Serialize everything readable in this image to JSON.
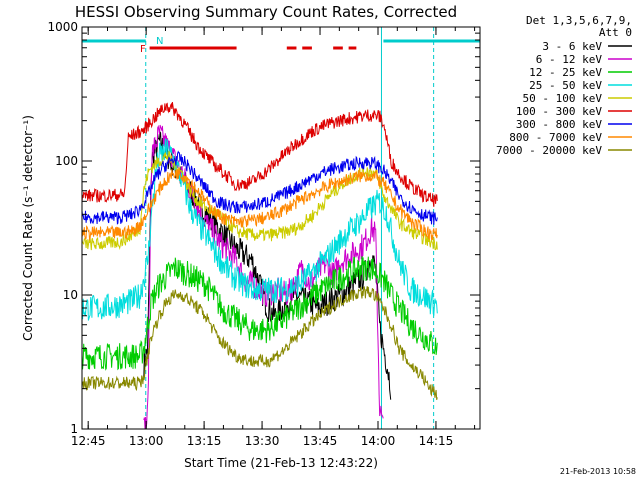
{
  "chart_data": {
    "type": "line",
    "title": "HESSI Observing Summary Count Rates, Corrected",
    "xlabel": "Start Time (21-Feb-13 12:43:22)",
    "ylabel": "Corrected Count Rate (s⁻¹ detector⁻¹)",
    "ylog": true,
    "ylim": [
      1,
      1000
    ],
    "xlim_minutes": [
      0,
      103
    ],
    "xticks": [
      {
        "label": "12:45",
        "t": 1.6
      },
      {
        "label": "13:00",
        "t": 16.6
      },
      {
        "label": "13:15",
        "t": 31.6
      },
      {
        "label": "13:30",
        "t": 46.6
      },
      {
        "label": "13:45",
        "t": 61.6
      },
      {
        "label": "14:00",
        "t": 76.6
      },
      {
        "label": "14:15",
        "t": 91.6
      }
    ],
    "yticks": [
      {
        "label": "1",
        "v": 1
      },
      {
        "label": "10",
        "v": 10
      },
      {
        "label": "100",
        "v": 100
      },
      {
        "label": "1000",
        "v": 1000
      }
    ],
    "legend_header": [
      "Det 1,3,5,6,7,9,",
      "Att 0"
    ],
    "flag_labels": {
      "f": "F",
      "n": "N"
    },
    "night_bars": [
      [
        0,
        16.5
      ],
      [
        78,
        103
      ]
    ],
    "flare_bars": [
      [
        17.5,
        40
      ],
      [
        53,
        55.5
      ],
      [
        57,
        59.5
      ],
      [
        65,
        67.5
      ],
      [
        69,
        71
      ]
    ],
    "dashed_lines": [
      16.5,
      91
    ],
    "solid_lines": [
      77.5
    ],
    "series": [
      {
        "name": "3 - 6 keV",
        "color": "#000000",
        "x": [
          16,
          17,
          18,
          20,
          22,
          25,
          28,
          32,
          36,
          40,
          44,
          46,
          48,
          50,
          52,
          55,
          58,
          61,
          64,
          67,
          70,
          73,
          75,
          76,
          77,
          78,
          79,
          80
        ],
        "y": [
          3,
          4,
          100,
          140,
          110,
          80,
          60,
          40,
          30,
          22,
          18,
          12,
          8,
          7,
          8,
          10,
          9,
          8,
          9,
          10,
          12,
          14,
          20,
          15,
          6,
          4,
          3,
          2
        ]
      },
      {
        "name": "6 - 12 keV",
        "color": "#cc00cc",
        "x": [
          16,
          17,
          18,
          20,
          22,
          25,
          28,
          32,
          36,
          40,
          42,
          44,
          46,
          48,
          50,
          53,
          55,
          57,
          59,
          61,
          63,
          65,
          67,
          70,
          73,
          75,
          76,
          77,
          78
        ],
        "y": [
          1,
          1.2,
          110,
          160,
          130,
          90,
          60,
          35,
          24,
          18,
          13,
          12,
          11,
          10,
          11,
          10,
          12,
          16,
          12,
          15,
          17,
          14,
          18,
          20,
          24,
          32,
          28,
          1.5,
          1
        ]
      },
      {
        "name": "12 - 25 keV",
        "color": "#00cc00",
        "x": [
          0,
          5,
          10,
          13,
          15,
          16,
          17,
          18,
          20,
          22,
          24,
          26,
          28,
          30,
          32,
          34,
          36,
          40,
          44,
          48,
          52,
          56,
          60,
          64,
          68,
          72,
          75,
          77,
          78,
          80,
          82,
          85,
          88,
          90,
          92
        ],
        "y": [
          3.5,
          3.5,
          3.5,
          3.5,
          3.5,
          4,
          6,
          9,
          12,
          14,
          16,
          15,
          14,
          13,
          12,
          10,
          8,
          6.5,
          5.5,
          5.5,
          6.5,
          8,
          10,
          12,
          14,
          16,
          16,
          14,
          13,
          10,
          8,
          6,
          5,
          4.5,
          4
        ]
      },
      {
        "name": "25 - 50 keV",
        "color": "#00dddd",
        "x": [
          0,
          5,
          10,
          13,
          15,
          17,
          18,
          19,
          20,
          22,
          24,
          26,
          28,
          30,
          32,
          34,
          36,
          38,
          40,
          44,
          48,
          52,
          56,
          60,
          64,
          68,
          72,
          74,
          76,
          77,
          78,
          79,
          80,
          82,
          85,
          88,
          90,
          92
        ],
        "y": [
          8,
          8,
          8.5,
          9,
          10,
          18,
          40,
          80,
          110,
          120,
          100,
          70,
          45,
          34,
          28,
          22,
          18,
          15,
          13,
          11,
          11,
          11,
          12,
          15,
          20,
          28,
          36,
          42,
          48,
          50,
          45,
          40,
          30,
          18,
          11,
          10,
          9,
          8.5
        ]
      },
      {
        "name": "50 - 100 keV",
        "color": "#cccc00",
        "x": [
          0,
          5,
          10,
          13,
          15,
          16,
          17,
          18,
          20,
          22,
          24,
          26,
          28,
          30,
          32,
          34,
          36,
          38,
          40,
          44,
          48,
          52,
          56,
          60,
          64,
          68,
          72,
          74,
          76,
          77,
          78,
          80,
          82,
          85,
          88,
          90,
          92
        ],
        "y": [
          24,
          24,
          25,
          28,
          32,
          60,
          80,
          90,
          100,
          110,
          95,
          80,
          60,
          50,
          45,
          42,
          38,
          34,
          30,
          28,
          28,
          29,
          32,
          40,
          55,
          70,
          82,
          85,
          80,
          70,
          55,
          45,
          35,
          30,
          27,
          25,
          24
        ]
      },
      {
        "name": "100 - 300 keV",
        "color": "#dd0000",
        "x": [
          0,
          5,
          10,
          11,
          12,
          14,
          16,
          18,
          20,
          22,
          24,
          26,
          28,
          30,
          32,
          34,
          36,
          38,
          40,
          44,
          48,
          52,
          56,
          60,
          64,
          68,
          72,
          74,
          76,
          77,
          78,
          79,
          80,
          82,
          85,
          88,
          90,
          92
        ],
        "y": [
          55,
          55,
          56,
          56,
          150,
          160,
          170,
          200,
          230,
          260,
          240,
          200,
          160,
          130,
          110,
          95,
          85,
          75,
          66,
          70,
          85,
          110,
          140,
          170,
          190,
          205,
          215,
          220,
          220,
          215,
          190,
          140,
          100,
          80,
          65,
          56,
          52,
          50
        ]
      },
      {
        "name": "300 - 800 keV",
        "color": "#0000ee",
        "x": [
          0,
          5,
          10,
          13,
          15,
          17,
          19,
          21,
          23,
          25,
          27,
          29,
          31,
          33,
          35,
          37,
          40,
          44,
          48,
          52,
          56,
          60,
          64,
          68,
          72,
          74,
          76,
          77,
          78,
          80,
          82,
          85,
          88,
          90,
          92
        ],
        "y": [
          38,
          38,
          38,
          40,
          44,
          55,
          75,
          90,
          100,
          105,
          95,
          80,
          68,
          58,
          50,
          47,
          45,
          46,
          50,
          56,
          65,
          76,
          86,
          92,
          97,
          98,
          95,
          90,
          85,
          70,
          55,
          45,
          40,
          38,
          37
        ]
      },
      {
        "name": "800 - 7000 keV",
        "color": "#ff8800",
        "x": [
          0,
          5,
          10,
          13,
          15,
          17,
          19,
          21,
          23,
          25,
          27,
          29,
          31,
          33,
          35,
          37,
          40,
          44,
          48,
          52,
          56,
          60,
          64,
          68,
          72,
          74,
          76,
          77,
          78,
          80,
          82,
          85,
          88,
          90,
          92
        ],
        "y": [
          29,
          29,
          29,
          30,
          33,
          42,
          55,
          68,
          78,
          82,
          76,
          65,
          55,
          46,
          40,
          37,
          35,
          36,
          38,
          43,
          50,
          58,
          66,
          72,
          77,
          78,
          76,
          72,
          68,
          55,
          44,
          36,
          31,
          29,
          28
        ]
      },
      {
        "name": "7000 - 20000 keV",
        "color": "#888800",
        "x": [
          0,
          5,
          10,
          13,
          15,
          16,
          17,
          18,
          20,
          22,
          24,
          26,
          28,
          30,
          32,
          34,
          36,
          40,
          44,
          48,
          52,
          56,
          60,
          64,
          68,
          72,
          75,
          77,
          78,
          80,
          82,
          85,
          88,
          90,
          92
        ],
        "y": [
          2.2,
          2.2,
          2.2,
          2.2,
          2.2,
          2.5,
          3.5,
          5,
          7,
          9,
          10,
          10,
          9,
          8,
          7,
          5.5,
          4.5,
          3.5,
          3.2,
          3.2,
          3.8,
          5,
          6.5,
          8,
          9.5,
          10.5,
          10.5,
          9,
          8,
          6,
          4,
          3,
          2.5,
          2,
          1.8
        ]
      }
    ],
    "footer_date": "21-Feb-2013 10:58"
  }
}
